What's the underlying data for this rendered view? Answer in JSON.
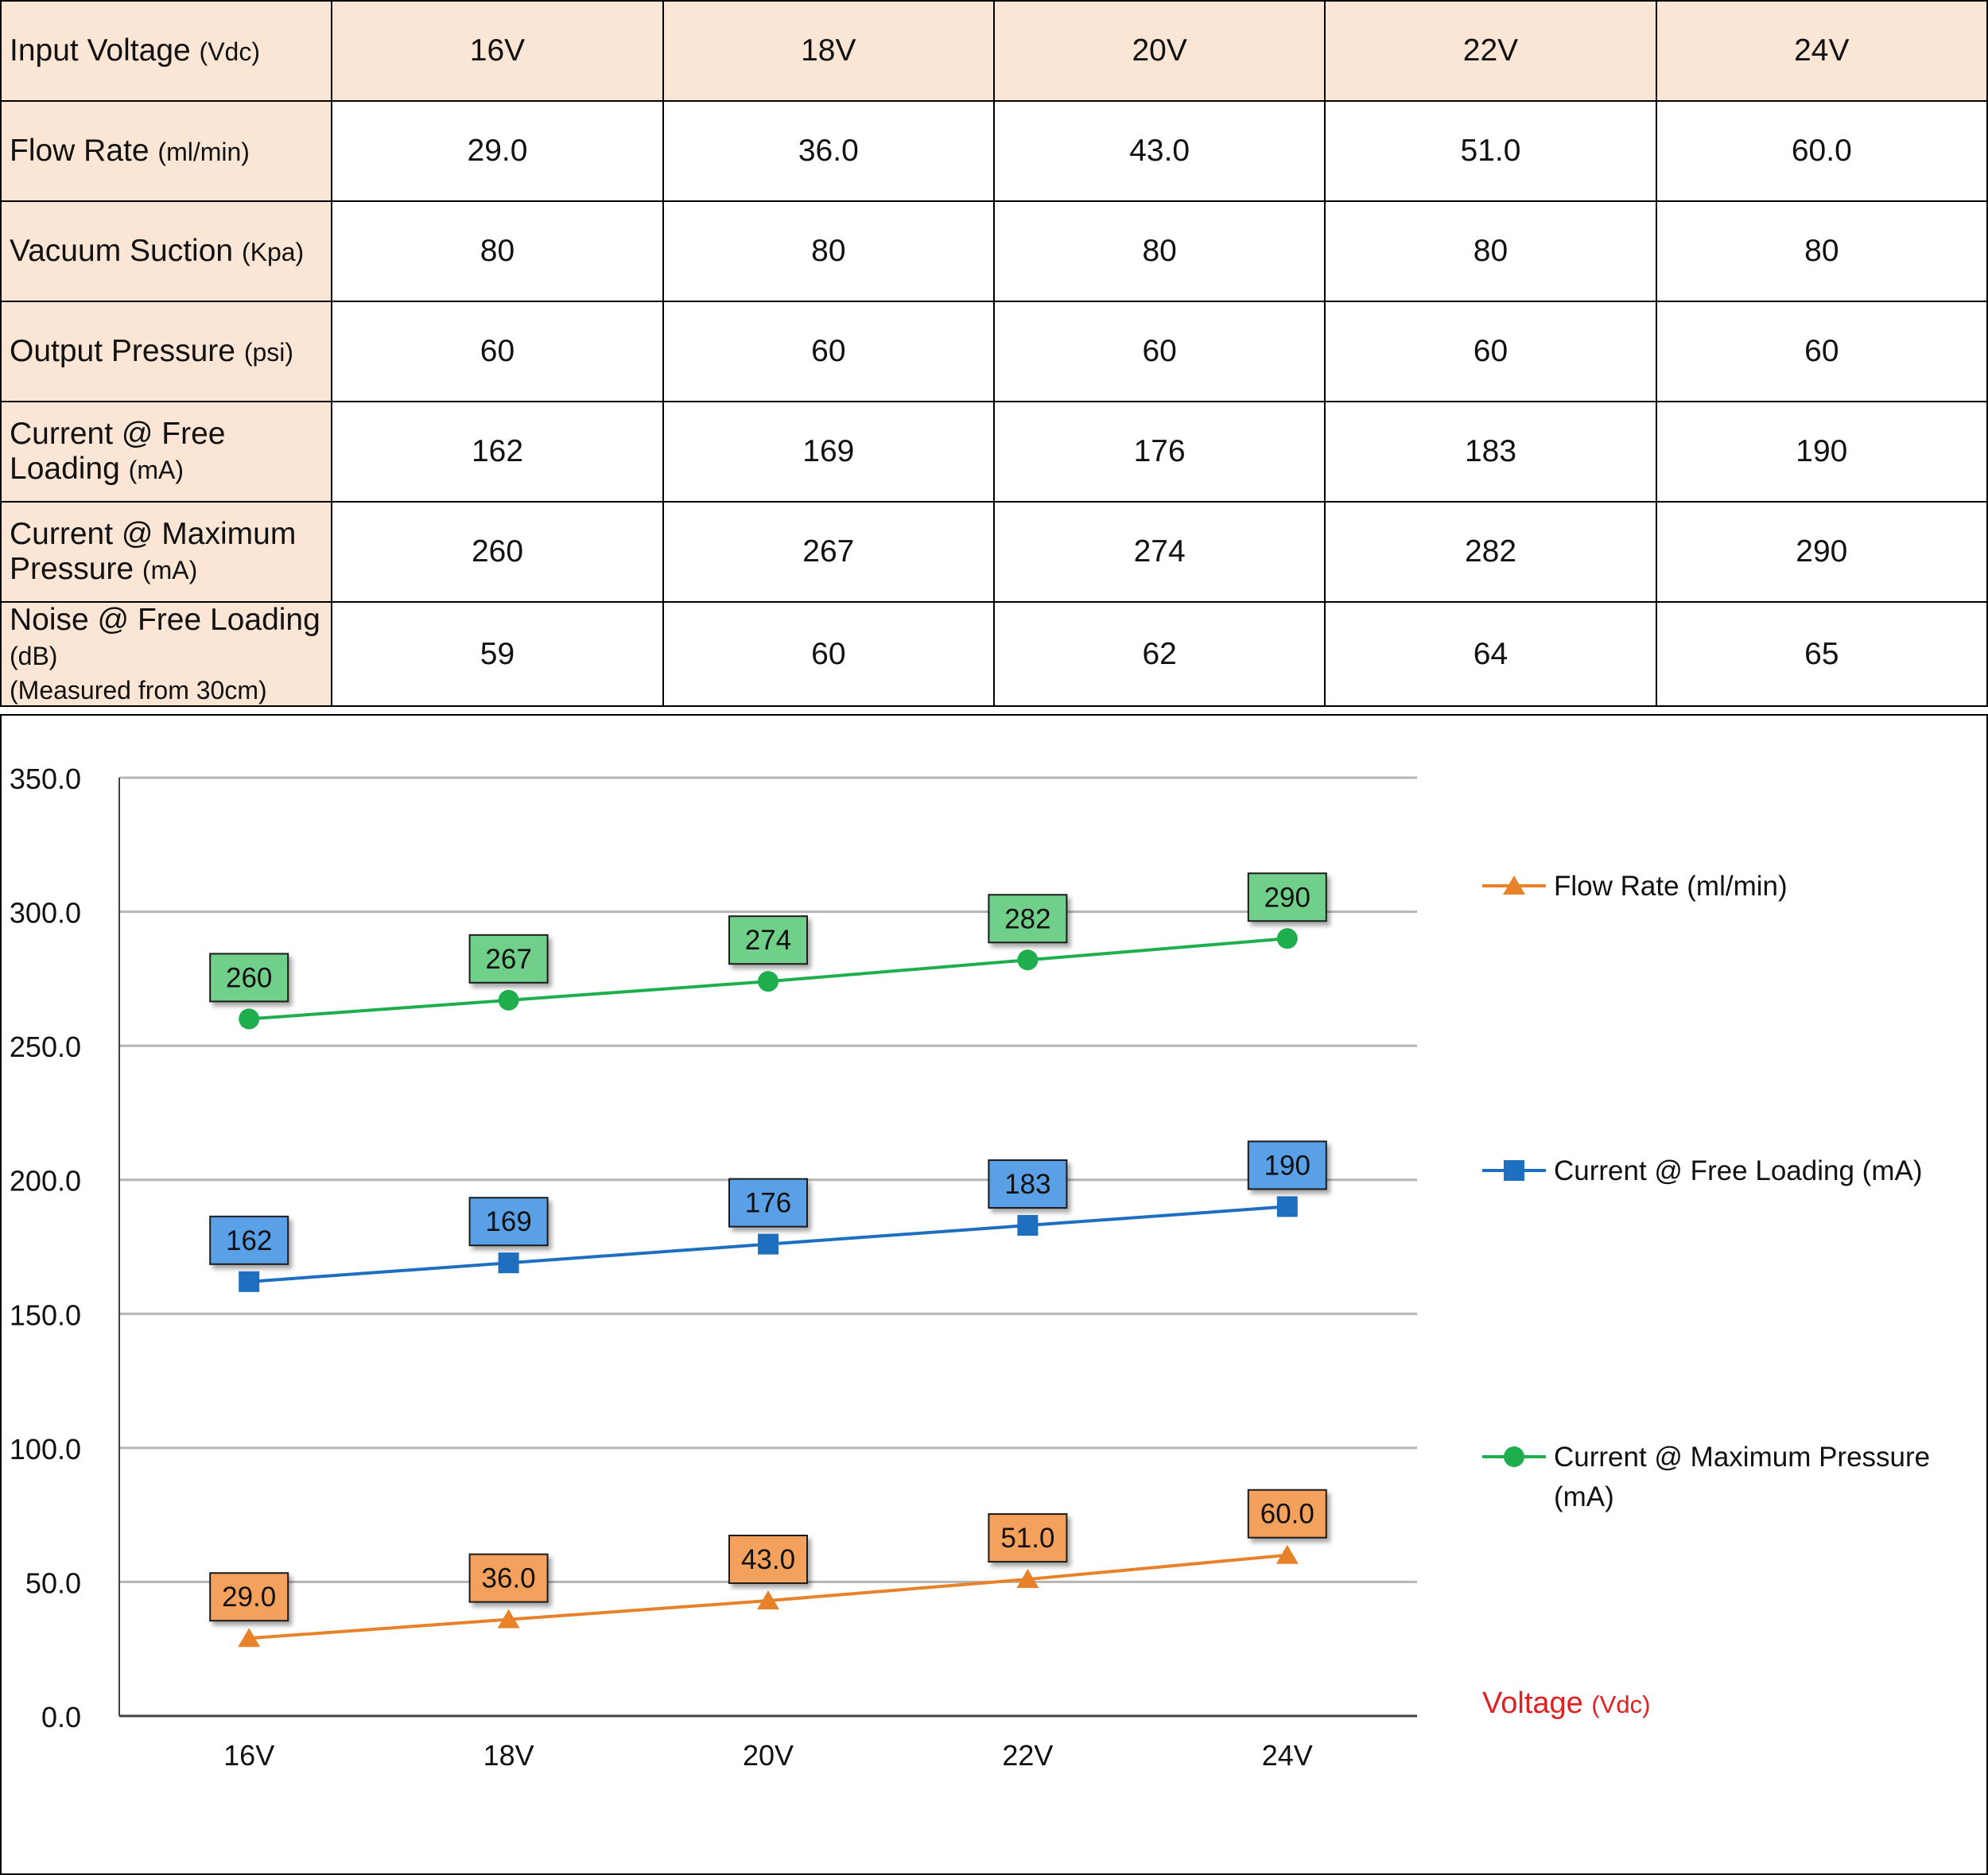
{
  "table": {
    "columns": [
      "16V",
      "18V",
      "20V",
      "22V",
      "24V"
    ],
    "header": {
      "label": "Input Voltage",
      "unit": "(Vdc)"
    },
    "rows": [
      {
        "label": "Flow Rate",
        "unit": "(ml/min)",
        "note": "",
        "values": [
          "29.0",
          "36.0",
          "43.0",
          "51.0",
          "60.0"
        ]
      },
      {
        "label": "Vacuum Suction",
        "unit": "(Kpa)",
        "note": "",
        "values": [
          "80",
          "80",
          "80",
          "80",
          "80"
        ]
      },
      {
        "label": "Output Pressure",
        "unit": "(psi)",
        "note": "",
        "values": [
          "60",
          "60",
          "60",
          "60",
          "60"
        ]
      },
      {
        "label": "Current @ Free Loading",
        "unit": "(mA)",
        "note": "",
        "values": [
          "162",
          "169",
          "176",
          "183",
          "190"
        ]
      },
      {
        "label": "Current @ Maximum Pressure",
        "unit": "(mA)",
        "note": "",
        "values": [
          "260",
          "267",
          "274",
          "282",
          "290"
        ]
      },
      {
        "label": "Noise @ Free Loading",
        "unit": "(dB)",
        "note": "(Measured from 30cm)",
        "values": [
          "59",
          "60",
          "62",
          "64",
          "65"
        ]
      }
    ]
  },
  "chart_data": {
    "type": "line",
    "categories": [
      "16V",
      "18V",
      "20V",
      "22V",
      "24V"
    ],
    "ylim": [
      0,
      350
    ],
    "yticks": [
      0,
      50,
      100,
      150,
      200,
      250,
      300,
      350
    ],
    "ytick_labels": [
      "0.0",
      "50.0",
      "100.0",
      "150.0",
      "200.0",
      "250.0",
      "300.0",
      "350.0"
    ],
    "grid": true,
    "legend_position": "right",
    "xlabel": "Voltage",
    "xlabel_unit": "(Vdc)",
    "xlabel_color": "#e02020",
    "series": [
      {
        "name": "Flow Rate (ml/min)",
        "values": [
          29.0,
          36.0,
          43.0,
          51.0,
          60.0
        ],
        "labels": [
          "29.0",
          "36.0",
          "43.0",
          "51.0",
          "60.0"
        ],
        "color": "#e8822a",
        "label_fill": "#f4a15d",
        "marker": "triangle"
      },
      {
        "name": "Current @ Free Loading (mA)",
        "values": [
          162,
          169,
          176,
          183,
          190
        ],
        "labels": [
          "162",
          "169",
          "176",
          "183",
          "190"
        ],
        "color": "#1f6fc0",
        "label_fill": "#5aa0e6",
        "marker": "square"
      },
      {
        "name": "Current @ Maximum Pressure (mA)",
        "values": [
          260,
          267,
          274,
          282,
          290
        ],
        "labels": [
          "260",
          "267",
          "274",
          "282",
          "290"
        ],
        "color": "#1fae4e",
        "label_fill": "#6fd08a",
        "marker": "circle"
      }
    ]
  }
}
